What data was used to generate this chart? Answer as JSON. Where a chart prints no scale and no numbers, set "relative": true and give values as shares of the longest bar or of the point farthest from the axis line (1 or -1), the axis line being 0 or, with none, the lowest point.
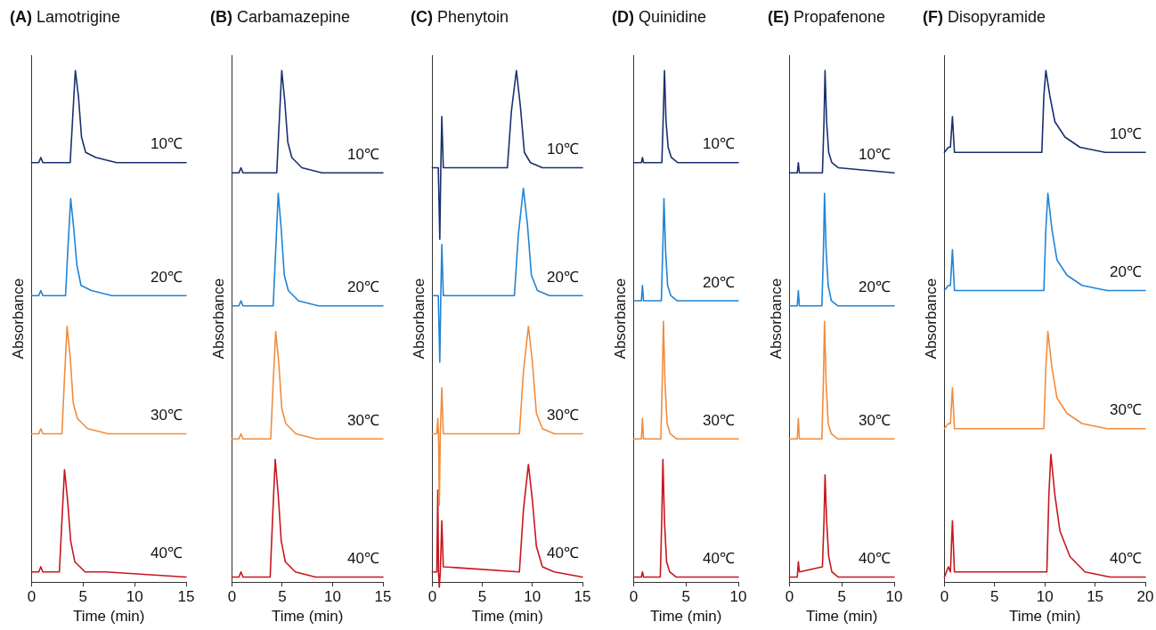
{
  "chart_data": [
    {
      "type": "line",
      "title": "(A) Lamotrigine",
      "xlabel": "Time (min)",
      "ylabel": "Absorbance",
      "xlim": [
        0,
        15
      ],
      "xticks": [
        0,
        5,
        10,
        15
      ],
      "relative": true,
      "marker": "none",
      "series": [
        {
          "name": "10℃",
          "color": "#18306e",
          "x": [
            0,
            0.7,
            0.9,
            1.1,
            3.75,
            4,
            4.25,
            4.55,
            4.85,
            5.25,
            6.25,
            8.25,
            15
          ],
          "values": [
            0.82,
            0.82,
            0.83,
            0.82,
            0.82,
            0.91,
            1,
            0.95,
            0.87,
            0.84,
            0.83,
            0.82,
            0.82
          ]
        },
        {
          "name": "20℃",
          "color": "#1f84d6",
          "x": [
            0,
            0.7,
            0.9,
            1.1,
            3.3,
            3.55,
            3.8,
            4.1,
            4.4,
            4.8,
            5.8,
            7.8,
            15
          ],
          "values": [
            0.56,
            0.56,
            0.57,
            0.56,
            0.56,
            0.66,
            0.75,
            0.69,
            0.62,
            0.58,
            0.57,
            0.56,
            0.56
          ]
        },
        {
          "name": "30℃",
          "color": "#f28c3c",
          "x": [
            0,
            0.7,
            0.9,
            1.1,
            2.95,
            3.2,
            3.45,
            3.75,
            4.05,
            4.45,
            5.45,
            7.45,
            15
          ],
          "values": [
            0.29,
            0.29,
            0.3,
            0.29,
            0.29,
            0.4,
            0.5,
            0.44,
            0.35,
            0.32,
            0.3,
            0.29,
            0.29
          ]
        },
        {
          "name": "40℃",
          "color": "#c8161d",
          "x": [
            0,
            0.7,
            0.9,
            1.1,
            2.7,
            2.95,
            3.2,
            3.5,
            3.8,
            4.2,
            5.2,
            7.2,
            15
          ],
          "values": [
            0.02,
            0.02,
            0.03,
            0.02,
            0.02,
            0.12,
            0.22,
            0.16,
            0.08,
            0.04,
            0.02,
            0.02,
            0.01
          ]
        }
      ]
    },
    {
      "type": "line",
      "title": "(B) Carbamazepine",
      "xlabel": "Time (min)",
      "ylabel": "Absorbance",
      "xlim": [
        0,
        15
      ],
      "xticks": [
        0,
        5,
        10,
        15
      ],
      "relative": true,
      "marker": "none",
      "series": [
        {
          "name": "10℃",
          "color": "#18306e",
          "x": [
            0,
            0.7,
            0.9,
            1.1,
            4.45,
            4.7,
            4.95,
            5.25,
            5.55,
            5.95,
            6.95,
            8.95,
            15
          ],
          "values": [
            0.8,
            0.8,
            0.81,
            0.8,
            0.8,
            0.9,
            1,
            0.94,
            0.86,
            0.83,
            0.81,
            0.8,
            0.8
          ]
        },
        {
          "name": "20℃",
          "color": "#1f84d6",
          "x": [
            0,
            0.7,
            0.9,
            1.1,
            4.1,
            4.35,
            4.6,
            4.9,
            5.2,
            5.6,
            6.6,
            8.6,
            15
          ],
          "values": [
            0.54,
            0.54,
            0.55,
            0.54,
            0.54,
            0.65,
            0.76,
            0.69,
            0.6,
            0.57,
            0.55,
            0.54,
            0.54
          ]
        },
        {
          "name": "30℃",
          "color": "#f28c3c",
          "x": [
            0,
            0.7,
            0.9,
            1.1,
            3.85,
            4.1,
            4.35,
            4.65,
            4.95,
            5.35,
            6.35,
            8.35,
            15
          ],
          "values": [
            0.28,
            0.28,
            0.29,
            0.28,
            0.28,
            0.39,
            0.49,
            0.43,
            0.34,
            0.31,
            0.29,
            0.28,
            0.28
          ]
        },
        {
          "name": "40℃",
          "color": "#c8161d",
          "x": [
            0,
            0.7,
            0.9,
            1.1,
            3.8,
            4.05,
            4.3,
            4.6,
            4.9,
            5.3,
            6.3,
            8.3,
            15
          ],
          "values": [
            0.01,
            0.01,
            0.02,
            0.01,
            0.01,
            0.13,
            0.24,
            0.17,
            0.08,
            0.04,
            0.02,
            0.01,
            0.01
          ]
        }
      ]
    },
    {
      "type": "line",
      "title": "(C) Phenytoin",
      "xlabel": "Time (min)",
      "ylabel": "Absorbance",
      "xlim": [
        0,
        15
      ],
      "xticks": [
        0,
        5,
        10,
        15
      ],
      "relative": true,
      "marker": "none",
      "series": [
        {
          "name": "10℃",
          "color": "#18306e",
          "x": [
            0,
            0.6,
            0.75,
            0.85,
            0.95,
            1.1,
            7.5,
            7.9,
            8.4,
            8.8,
            9.2,
            9.8,
            11,
            15
          ],
          "values": [
            0.81,
            0.81,
            0.67,
            0.81,
            0.91,
            0.81,
            0.81,
            0.92,
            1,
            0.93,
            0.84,
            0.82,
            0.81,
            0.81
          ]
        },
        {
          "name": "20℃",
          "color": "#1f84d6",
          "x": [
            0,
            0.6,
            0.75,
            0.85,
            0.95,
            1.1,
            8.2,
            8.6,
            9.1,
            9.5,
            9.9,
            10.5,
            11.7,
            15
          ],
          "values": [
            0.56,
            0.56,
            0.43,
            0.56,
            0.66,
            0.56,
            0.56,
            0.68,
            0.77,
            0.7,
            0.6,
            0.57,
            0.56,
            0.56
          ]
        },
        {
          "name": "30℃",
          "color": "#f28c3c",
          "x": [
            0,
            0.45,
            0.55,
            0.62,
            0.7,
            0.8,
            0.95,
            1.1,
            8.7,
            9.1,
            9.6,
            10,
            10.4,
            11,
            12.2,
            15
          ],
          "values": [
            0.29,
            0.29,
            0.32,
            0.29,
            0.15,
            0.29,
            0.38,
            0.29,
            0.29,
            0.41,
            0.5,
            0.43,
            0.33,
            0.3,
            0.29,
            0.29
          ]
        },
        {
          "name": "40℃",
          "color": "#c8161d",
          "x": [
            0,
            0.45,
            0.55,
            0.62,
            0.7,
            0.8,
            0.95,
            1.1,
            8.7,
            9.1,
            9.6,
            10,
            10.4,
            11,
            12.2,
            15
          ],
          "values": [
            0.02,
            0.02,
            0.18,
            0.02,
            -0.01,
            0.02,
            0.12,
            0.03,
            0.02,
            0.14,
            0.23,
            0.16,
            0.07,
            0.03,
            0.02,
            0.01
          ]
        }
      ]
    },
    {
      "type": "line",
      "title": "(D) Quinidine",
      "xlabel": "Time (min)",
      "ylabel": "Absorbance",
      "xlim": [
        0,
        10
      ],
      "xticks": [
        0,
        5,
        10
      ],
      "relative": true,
      "marker": "none",
      "series": [
        {
          "name": "10℃",
          "color": "#18306e",
          "x": [
            0,
            0.75,
            0.85,
            0.95,
            2.7,
            2.85,
            2.95,
            3.1,
            3.3,
            3.6,
            4.2,
            10
          ],
          "values": [
            0.82,
            0.82,
            0.83,
            0.82,
            0.82,
            0.92,
            1,
            0.9,
            0.85,
            0.83,
            0.82,
            0.82
          ]
        },
        {
          "name": "20℃",
          "color": "#1f84d6",
          "x": [
            0,
            0.75,
            0.85,
            0.95,
            2.65,
            2.8,
            2.9,
            3.05,
            3.25,
            3.55,
            4.15,
            10
          ],
          "values": [
            0.55,
            0.55,
            0.58,
            0.55,
            0.55,
            0.66,
            0.75,
            0.65,
            0.58,
            0.56,
            0.55,
            0.55
          ]
        },
        {
          "name": "30℃",
          "color": "#f28c3c",
          "x": [
            0,
            0.75,
            0.85,
            0.95,
            2.6,
            2.75,
            2.85,
            3,
            3.2,
            3.5,
            4.1,
            10
          ],
          "values": [
            0.28,
            0.28,
            0.32,
            0.28,
            0.28,
            0.4,
            0.51,
            0.39,
            0.31,
            0.29,
            0.28,
            0.28
          ]
        },
        {
          "name": "40℃",
          "color": "#c8161d",
          "x": [
            0,
            0.75,
            0.85,
            0.95,
            2.55,
            2.7,
            2.8,
            2.95,
            3.15,
            3.45,
            4.05,
            10
          ],
          "values": [
            0.01,
            0.01,
            0.02,
            0.01,
            0.01,
            0.13,
            0.24,
            0.12,
            0.04,
            0.02,
            0.01,
            0.01
          ]
        }
      ]
    },
    {
      "type": "line",
      "title": "(E) Propafenone",
      "xlabel": "Time (min)",
      "ylabel": "Absorbance",
      "xlim": [
        0,
        10
      ],
      "xticks": [
        0,
        5,
        10
      ],
      "relative": true,
      "marker": "none",
      "series": [
        {
          "name": "10℃",
          "color": "#18306e",
          "x": [
            0,
            0.75,
            0.85,
            0.95,
            3.15,
            3.3,
            3.4,
            3.55,
            3.75,
            4.05,
            4.65,
            10
          ],
          "values": [
            0.8,
            0.8,
            0.82,
            0.8,
            0.8,
            0.9,
            1,
            0.9,
            0.84,
            0.82,
            0.81,
            0.8
          ]
        },
        {
          "name": "20℃",
          "color": "#1f84d6",
          "x": [
            0,
            0.75,
            0.85,
            0.95,
            3.1,
            3.25,
            3.35,
            3.5,
            3.7,
            4,
            4.6,
            10
          ],
          "values": [
            0.54,
            0.54,
            0.57,
            0.54,
            0.54,
            0.65,
            0.76,
            0.65,
            0.58,
            0.55,
            0.54,
            0.54
          ]
        },
        {
          "name": "30℃",
          "color": "#f28c3c",
          "x": [
            0,
            0.75,
            0.85,
            0.95,
            3.1,
            3.25,
            3.35,
            3.5,
            3.7,
            4,
            4.6,
            10
          ],
          "values": [
            0.28,
            0.28,
            0.32,
            0.28,
            0.28,
            0.4,
            0.51,
            0.39,
            0.31,
            0.29,
            0.28,
            0.28
          ]
        },
        {
          "name": "40℃",
          "color": "#c8161d",
          "x": [
            0,
            0.75,
            0.85,
            0.95,
            3.15,
            3.3,
            3.4,
            3.55,
            3.75,
            4.05,
            4.65,
            10
          ],
          "values": [
            0.01,
            0.01,
            0.04,
            0.02,
            0.03,
            0.12,
            0.21,
            0.12,
            0.05,
            0.02,
            0.01,
            0.01
          ]
        }
      ]
    },
    {
      "type": "line",
      "title": "(F) Disopyramide",
      "xlabel": "Time (min)",
      "ylabel": "Absorbance",
      "xlim": [
        0,
        20
      ],
      "xticks": [
        0,
        5,
        10,
        15,
        20
      ],
      "relative": true,
      "marker": "none",
      "series": [
        {
          "name": "10℃",
          "color": "#18306e",
          "x": [
            0,
            0.4,
            0.6,
            0.8,
            1,
            9.7,
            9.9,
            10.1,
            10.5,
            11,
            12,
            13.5,
            16,
            20
          ],
          "values": [
            0.84,
            0.85,
            0.85,
            0.91,
            0.84,
            0.84,
            0.95,
            1,
            0.95,
            0.9,
            0.87,
            0.85,
            0.84,
            0.84
          ]
        },
        {
          "name": "20℃",
          "color": "#1f84d6",
          "x": [
            0,
            0.4,
            0.6,
            0.8,
            1,
            9.9,
            10.1,
            10.3,
            10.7,
            11.2,
            12.2,
            13.7,
            16.2,
            20
          ],
          "values": [
            0.57,
            0.58,
            0.58,
            0.65,
            0.57,
            0.57,
            0.69,
            0.76,
            0.69,
            0.63,
            0.6,
            0.58,
            0.57,
            0.57
          ]
        },
        {
          "name": "30℃",
          "color": "#f28c3c",
          "x": [
            0,
            0.4,
            0.6,
            0.8,
            1,
            9.9,
            10.1,
            10.3,
            10.7,
            11.2,
            12.2,
            13.7,
            16.2,
            20
          ],
          "values": [
            0.3,
            0.31,
            0.31,
            0.38,
            0.3,
            0.3,
            0.42,
            0.49,
            0.42,
            0.36,
            0.33,
            0.31,
            0.3,
            0.3
          ]
        },
        {
          "name": "40℃",
          "color": "#c8161d",
          "x": [
            0,
            0.4,
            0.6,
            0.8,
            1,
            10.2,
            10.4,
            10.6,
            11,
            11.5,
            12.5,
            14,
            16.5,
            20
          ],
          "values": [
            0.01,
            0.03,
            0.02,
            0.12,
            0.02,
            0.02,
            0.17,
            0.25,
            0.17,
            0.1,
            0.05,
            0.02,
            0.01,
            0.01
          ]
        }
      ]
    }
  ]
}
